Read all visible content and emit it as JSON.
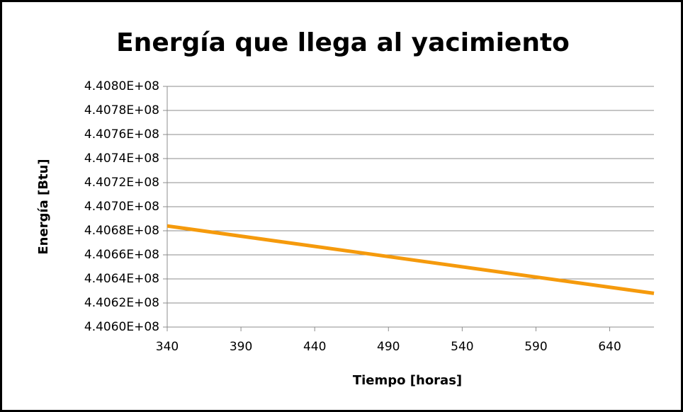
{
  "chart_data": {
    "type": "line",
    "title": "Energía que llega al yacimiento",
    "x_label": "Tiempo [horas]",
    "y_label": "Energía [Btu]",
    "x": [
      340,
      670
    ],
    "series": [
      {
        "name": "Energía",
        "color": "#f59a0c",
        "values": [
          440684000,
          440628000
        ]
      }
    ],
    "xlim": [
      340,
      670
    ],
    "xticks": [
      340,
      390,
      440,
      490,
      540,
      590,
      640
    ],
    "ylim": [
      440600000,
      440800000
    ],
    "yticks": [
      {
        "value": 440600000,
        "label": "4.4060E+08"
      },
      {
        "value": 440620000,
        "label": "4.4062E+08"
      },
      {
        "value": 440640000,
        "label": "4.4064E+08"
      },
      {
        "value": 440660000,
        "label": "4.4066E+08"
      },
      {
        "value": 440680000,
        "label": "4.4068E+08"
      },
      {
        "value": 440700000,
        "label": "4.4070E+08"
      },
      {
        "value": 440720000,
        "label": "4.4072E+08"
      },
      {
        "value": 440740000,
        "label": "4.4074E+08"
      },
      {
        "value": 440760000,
        "label": "4.4076E+08"
      },
      {
        "value": 440780000,
        "label": "4.4078E+08"
      },
      {
        "value": 440800000,
        "label": "4.4080E+08"
      }
    ],
    "grid": true
  }
}
